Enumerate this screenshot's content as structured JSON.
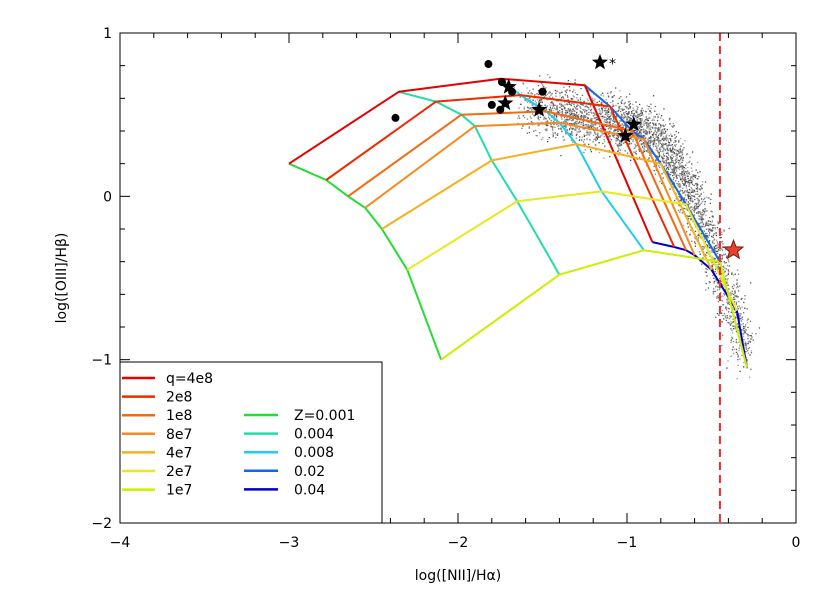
{
  "chart_data": {
    "type": "line",
    "title": "",
    "xlabel": "log([NII]/Hα)",
    "ylabel": "log([OIII]/Hβ)",
    "xlim": [
      -4,
      0
    ],
    "ylim": [
      -2,
      1
    ],
    "xticks": [
      "−4",
      "−3",
      "−2",
      "−1",
      "0"
    ],
    "yticks": [
      "−2",
      "−1",
      "0",
      "1"
    ],
    "grid": false,
    "legend_position": "bottom-left",
    "legend": {
      "q_series": [
        {
          "label": "q=4e8",
          "color": "#e60000"
        },
        {
          "label": "2e8",
          "color": "#ee2a00"
        },
        {
          "label": "1e8",
          "color": "#f36a10"
        },
        {
          "label": "8e7",
          "color": "#f58a20"
        },
        {
          "label": "4e7",
          "color": "#f5b020"
        },
        {
          "label": "2e7",
          "color": "#e8e820"
        },
        {
          "label": "1e7",
          "color": "#ccee00"
        }
      ],
      "z_series": [
        {
          "label": "Z=0.001",
          "color": "#22dd33"
        },
        {
          "label": "0.004",
          "color": "#22ddaa"
        },
        {
          "label": "0.008",
          "color": "#22ccee"
        },
        {
          "label": "0.02",
          "color": "#1166ee"
        },
        {
          "label": "0.04",
          "color": "#0000cc"
        }
      ]
    },
    "grid_points": {
      "q_lines": [
        {
          "q": "4e8",
          "points": [
            [
              -3.0,
              0.2
            ],
            [
              -2.35,
              0.64
            ],
            [
              -1.75,
              0.72
            ],
            [
              -1.25,
              0.68
            ],
            [
              -0.85,
              -0.28
            ]
          ]
        },
        {
          "q": "2e8",
          "points": [
            [
              -2.78,
              0.1
            ],
            [
              -2.13,
              0.58
            ],
            [
              -1.63,
              0.62
            ],
            [
              -1.1,
              0.55
            ],
            [
              -0.72,
              -0.31
            ]
          ]
        },
        {
          "q": "1e8",
          "points": [
            [
              -2.65,
              0.0
            ],
            [
              -1.98,
              0.5
            ],
            [
              -1.48,
              0.52
            ],
            [
              -0.97,
              0.4
            ],
            [
              -0.65,
              -0.33
            ]
          ]
        },
        {
          "q": "8e7",
          "points": [
            [
              -2.55,
              -0.07
            ],
            [
              -1.9,
              0.43
            ],
            [
              -1.4,
              0.45
            ],
            [
              -0.9,
              0.35
            ],
            [
              -0.6,
              -0.36
            ]
          ]
        },
        {
          "q": "4e7",
          "points": [
            [
              -2.45,
              -0.2
            ],
            [
              -1.8,
              0.22
            ],
            [
              -1.3,
              0.32
            ],
            [
              -0.8,
              0.2
            ],
            [
              -0.5,
              -0.45
            ]
          ]
        },
        {
          "q": "2e7",
          "points": [
            [
              -2.3,
              -0.45
            ],
            [
              -1.65,
              -0.03
            ],
            [
              -1.15,
              0.03
            ],
            [
              -0.65,
              -0.05
            ],
            [
              -0.35,
              -0.7
            ]
          ]
        },
        {
          "q": "1e7",
          "points": [
            [
              -2.1,
              -1.0
            ],
            [
              -1.4,
              -0.48
            ],
            [
              -0.9,
              -0.33
            ],
            [
              -0.45,
              -0.4
            ],
            [
              -0.29,
              -1.05
            ]
          ]
        }
      ],
      "z_lines": [
        {
          "z": "0.001",
          "points": [
            [
              -3.0,
              0.2
            ],
            [
              -2.78,
              0.1
            ],
            [
              -2.65,
              0.0
            ],
            [
              -2.55,
              -0.07
            ],
            [
              -2.45,
              -0.2
            ],
            [
              -2.3,
              -0.45
            ],
            [
              -2.1,
              -1.0
            ]
          ]
        },
        {
          "z": "0.004",
          "points": [
            [
              -2.35,
              0.64
            ],
            [
              -2.13,
              0.58
            ],
            [
              -1.98,
              0.5
            ],
            [
              -1.9,
              0.43
            ],
            [
              -1.8,
              0.22
            ],
            [
              -1.65,
              -0.03
            ],
            [
              -1.4,
              -0.48
            ]
          ]
        },
        {
          "z": "0.008",
          "points": [
            [
              -1.75,
              0.72
            ],
            [
              -1.63,
              0.62
            ],
            [
              -1.48,
              0.52
            ],
            [
              -1.4,
              0.45
            ],
            [
              -1.3,
              0.32
            ],
            [
              -1.15,
              0.03
            ],
            [
              -0.9,
              -0.33
            ]
          ]
        },
        {
          "z": "0.02",
          "points": [
            [
              -1.25,
              0.68
            ],
            [
              -1.1,
              0.55
            ],
            [
              -0.97,
              0.4
            ],
            [
              -0.9,
              0.35
            ],
            [
              -0.8,
              0.2
            ],
            [
              -0.65,
              -0.05
            ],
            [
              -0.45,
              -0.4
            ]
          ]
        },
        {
          "z": "0.04",
          "points": [
            [
              -0.85,
              -0.28
            ],
            [
              -0.72,
              -0.31
            ],
            [
              -0.65,
              -0.33
            ],
            [
              -0.6,
              -0.36
            ],
            [
              -0.5,
              -0.45
            ],
            [
              -0.35,
              -0.7
            ],
            [
              -0.29,
              -1.05
            ]
          ]
        }
      ]
    },
    "dots": [
      [
        -1.82,
        0.81
      ],
      [
        -1.74,
        0.7
      ],
      [
        -1.68,
        0.64
      ],
      [
        -1.8,
        0.56
      ],
      [
        -1.75,
        0.53
      ],
      [
        -1.5,
        0.64
      ],
      [
        -2.37,
        0.48
      ]
    ],
    "stars": [
      [
        -1.7,
        0.67
      ],
      [
        -1.72,
        0.57
      ],
      [
        -1.52,
        0.53
      ],
      [
        -1.01,
        0.37
      ],
      [
        -0.96,
        0.44
      ],
      [
        -1.16,
        0.82
      ]
    ],
    "star_annotation": "*",
    "highlight_star": [
      -0.37,
      -0.33
    ],
    "vertical_line_x": -0.45,
    "vertical_line_color": "#e8302a",
    "background_cloud": "dense grey scatter of galaxies along the star-forming sequence"
  }
}
